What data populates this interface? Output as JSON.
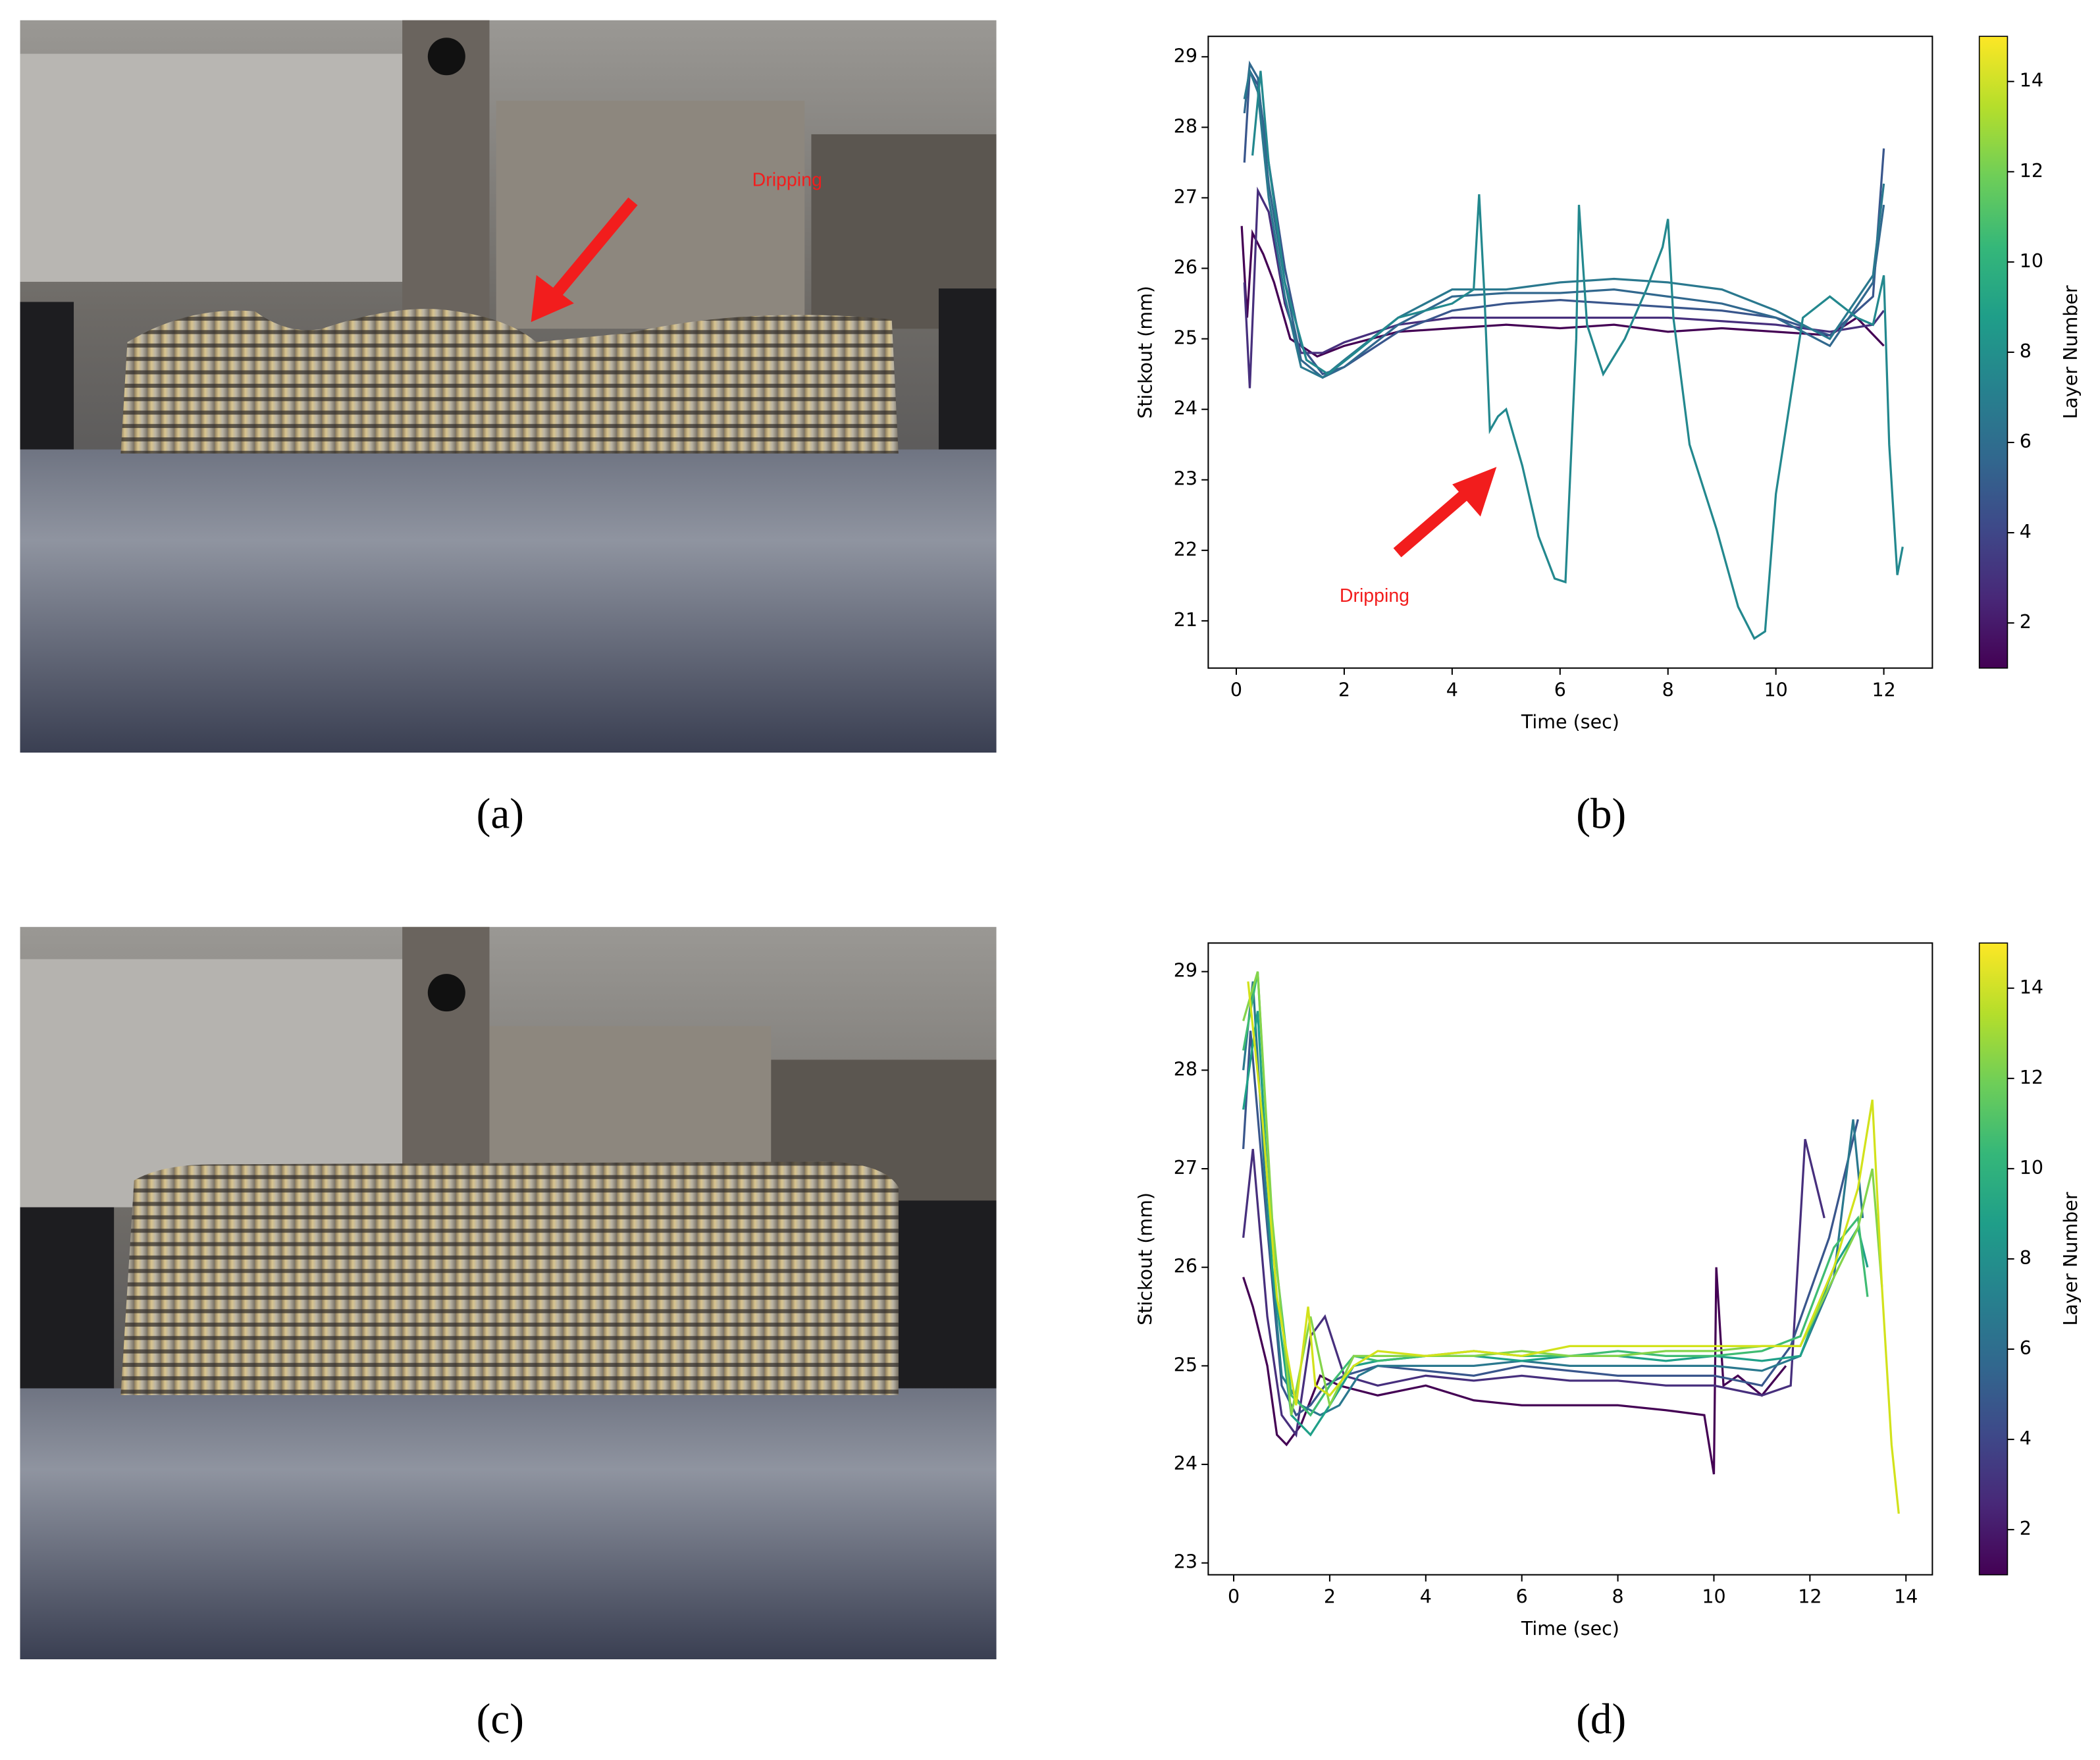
{
  "figure": {
    "photo_annotation": "Dripping",
    "captions": [
      "(a)",
      "(b)",
      "(c)",
      "(d)"
    ]
  },
  "chart_data": [
    {
      "type": "line",
      "xlabel": "Time (sec)",
      "ylabel": "Stickout (mm)",
      "xlim": [
        -0.52,
        12.9
      ],
      "ylim": [
        20.33,
        29.29
      ],
      "xticks": [
        0,
        2,
        4,
        6,
        8,
        10,
        12
      ],
      "yticks": [
        21,
        22,
        23,
        24,
        25,
        26,
        27,
        28,
        29
      ],
      "annotation": "Dripping",
      "colorbar": {
        "label": "Layer Number",
        "lim": [
          1,
          15
        ],
        "ticks": [
          2,
          4,
          6,
          8,
          10,
          12,
          14
        ],
        "colors": [
          "#440154",
          "#482878",
          "#3e4989",
          "#31688e",
          "#26828e",
          "#1f9e89",
          "#35b779",
          "#6ece58",
          "#b5de2b",
          "#fde725"
        ]
      },
      "series": [
        {
          "color": "#440154",
          "x": [
            0.1,
            0.2,
            0.3,
            0.5,
            0.7,
            1.0,
            1.5,
            2,
            3,
            4,
            5,
            6,
            7,
            8,
            9,
            10,
            11,
            11.5,
            12
          ],
          "values": [
            26.6,
            25.3,
            26.5,
            26.2,
            25.8,
            25.0,
            24.75,
            24.9,
            25.1,
            25.15,
            25.2,
            25.15,
            25.2,
            25.1,
            25.15,
            25.1,
            25.05,
            25.3,
            24.9
          ]
        },
        {
          "color": "#472f7d",
          "x": [
            0.15,
            0.25,
            0.4,
            0.6,
            0.9,
            1.2,
            1.6,
            2,
            3,
            4,
            5,
            6,
            7,
            8,
            9,
            10,
            11,
            11.8,
            12
          ],
          "values": [
            25.8,
            24.3,
            27.1,
            26.8,
            25.5,
            24.8,
            24.8,
            24.95,
            25.2,
            25.3,
            25.3,
            25.3,
            25.3,
            25.3,
            25.25,
            25.2,
            25.1,
            25.2,
            25.4
          ]
        },
        {
          "color": "#39568c",
          "x": [
            0.15,
            0.25,
            0.4,
            0.6,
            0.9,
            1.2,
            1.6,
            2,
            3,
            4,
            5,
            6,
            7,
            8,
            9,
            10,
            11,
            11.8,
            12
          ],
          "values": [
            27.5,
            28.8,
            28.6,
            27.5,
            26,
            24.9,
            24.5,
            24.6,
            25.1,
            25.4,
            25.5,
            25.55,
            25.5,
            25.45,
            25.4,
            25.3,
            25.05,
            25.6,
            27.7
          ]
        },
        {
          "color": "#31688e",
          "x": [
            0.15,
            0.25,
            0.4,
            0.6,
            0.9,
            1.2,
            1.6,
            2,
            3,
            4,
            5,
            6,
            7,
            8,
            9,
            10,
            11,
            11.8,
            12
          ],
          "values": [
            28.2,
            28.9,
            28.7,
            27.2,
            25.8,
            24.7,
            24.45,
            24.6,
            25.2,
            25.6,
            25.65,
            25.65,
            25.7,
            25.6,
            25.5,
            25.3,
            24.9,
            25.8,
            26.9
          ]
        },
        {
          "color": "#2a788e",
          "x": [
            0.15,
            0.25,
            0.4,
            0.6,
            0.9,
            1.2,
            1.6,
            2,
            3,
            4,
            5,
            6,
            7,
            8,
            9,
            10,
            11,
            11.8,
            12
          ],
          "values": [
            28.4,
            28.8,
            28.5,
            27,
            25.6,
            24.6,
            24.45,
            24.7,
            25.3,
            25.7,
            25.7,
            25.8,
            25.85,
            25.8,
            25.7,
            25.4,
            25,
            25.9,
            27.2
          ]
        },
        {
          "color": "#23888e",
          "x": [
            0.3,
            0.45,
            0.6,
            0.9,
            1.3,
            1.7,
            2.2,
            3,
            4,
            4.4,
            4.5,
            4.6,
            4.7,
            4.85,
            5.0,
            5.3,
            5.6,
            5.9,
            6.1,
            6.3,
            6.35,
            6.5,
            6.8,
            7.2,
            7.6,
            7.9,
            8.0,
            8.1,
            8.4,
            8.9,
            9.3,
            9.6,
            9.8,
            10.0,
            10.5,
            11,
            11.5,
            11.8,
            12.0,
            12.1,
            12.25,
            12.35
          ],
          "values": [
            27.6,
            28.8,
            27.5,
            25.8,
            24.7,
            24.5,
            24.8,
            25.3,
            25.5,
            25.7,
            27.05,
            25.6,
            23.7,
            23.9,
            24.0,
            23.2,
            22.2,
            21.6,
            21.55,
            25,
            26.9,
            25.2,
            24.5,
            25.0,
            25.7,
            26.3,
            26.7,
            25.3,
            23.5,
            22.3,
            21.2,
            20.75,
            20.85,
            22.8,
            25.3,
            25.6,
            25.3,
            25.2,
            25.9,
            23.5,
            21.65,
            22.05
          ]
        }
      ]
    },
    {
      "type": "line",
      "xlabel": "Time (sec)",
      "ylabel": "Stickout (mm)",
      "xlim": [
        -0.53,
        14.55
      ],
      "ylim": [
        22.88,
        29.29
      ],
      "xticks": [
        0,
        2,
        4,
        6,
        8,
        10,
        12,
        14
      ],
      "yticks": [
        23,
        24,
        25,
        26,
        27,
        28,
        29
      ],
      "colorbar": {
        "label": "Layer Number",
        "lim": [
          1,
          15
        ],
        "ticks": [
          2,
          4,
          6,
          8,
          10,
          12,
          14
        ],
        "colors": [
          "#440154",
          "#482878",
          "#3e4989",
          "#31688e",
          "#26828e",
          "#1f9e89",
          "#35b779",
          "#6ece58",
          "#b5de2b",
          "#fde725"
        ]
      },
      "series": [
        {
          "color": "#440154",
          "x": [
            0.2,
            0.4,
            0.7,
            0.9,
            1.1,
            1.4,
            1.8,
            2.2,
            3,
            4,
            5,
            6,
            7,
            8,
            9,
            9.8,
            10,
            10.05,
            10.2,
            10.5,
            11,
            11.5
          ],
          "values": [
            25.9,
            25.6,
            25.0,
            24.3,
            24.2,
            24.4,
            24.9,
            24.8,
            24.7,
            24.8,
            24.65,
            24.6,
            24.6,
            24.6,
            24.55,
            24.5,
            23.9,
            26.0,
            24.8,
            24.9,
            24.7,
            25.0
          ]
        },
        {
          "color": "#472f7d",
          "x": [
            0.2,
            0.4,
            0.7,
            1,
            1.3,
            1.6,
            1.9,
            2.3,
            3,
            4,
            5,
            6,
            7,
            8,
            9,
            10,
            11,
            11.6,
            11.9,
            12.3
          ],
          "values": [
            26.3,
            27.2,
            25.5,
            24.5,
            24.3,
            25.3,
            25.5,
            24.9,
            24.8,
            24.9,
            24.85,
            24.9,
            24.85,
            24.85,
            24.8,
            24.8,
            24.7,
            24.8,
            27.3,
            26.5
          ]
        },
        {
          "color": "#39568c",
          "x": [
            0.2,
            0.35,
            0.7,
            1,
            1.3,
            1.6,
            1.9,
            2.3,
            3,
            4,
            5,
            6,
            7,
            8,
            9,
            10,
            11,
            11.6,
            12.4,
            13
          ],
          "values": [
            27.2,
            28.4,
            26.4,
            24.8,
            24.5,
            24.6,
            24.8,
            24.9,
            25.0,
            24.95,
            24.9,
            25.0,
            24.95,
            24.9,
            24.9,
            24.9,
            24.8,
            25.2,
            26.3,
            27.5
          ]
        },
        {
          "color": "#2a788e",
          "x": [
            0.2,
            0.4,
            0.7,
            1,
            1.4,
            1.8,
            2.2,
            2.6,
            3,
            4,
            5,
            6,
            7,
            8,
            9,
            10,
            11,
            11.8,
            12.5,
            12.9,
            13.1
          ],
          "values": [
            28.0,
            28.9,
            26.5,
            24.9,
            24.6,
            24.5,
            24.6,
            24.9,
            25.0,
            25.0,
            25.0,
            25.05,
            25.0,
            25.0,
            25.0,
            25.0,
            24.95,
            25.1,
            25.9,
            27.5,
            26.5
          ]
        },
        {
          "color": "#1fa088",
          "x": [
            0.2,
            0.5,
            0.8,
            1.2,
            1.6,
            2,
            2.5,
            3,
            4,
            5,
            6,
            7,
            8,
            9,
            10,
            11,
            11.8,
            12.5,
            13,
            13.2
          ],
          "values": [
            27.6,
            28.6,
            26,
            24.5,
            24.3,
            24.6,
            25.0,
            25.05,
            25.1,
            25.1,
            25.05,
            25.1,
            25.1,
            25.05,
            25.1,
            25.05,
            25.1,
            26.0,
            26.4,
            26.0
          ]
        },
        {
          "color": "#3fbc73",
          "x": [
            0.2,
            0.5,
            0.8,
            1.2,
            1.6,
            2,
            2.5,
            3,
            4,
            5,
            6,
            7,
            8,
            9,
            10,
            11,
            11.8,
            12.5,
            13,
            13.2
          ],
          "values": [
            28.2,
            29.0,
            26.4,
            24.7,
            24.5,
            24.8,
            25.1,
            25.05,
            25.1,
            25.15,
            25.1,
            25.1,
            25.15,
            25.1,
            25.1,
            25.15,
            25.3,
            26.2,
            26.5,
            25.7
          ]
        },
        {
          "color": "#84d44b",
          "x": [
            0.2,
            0.5,
            0.8,
            1.2,
            1.6,
            2,
            2.5,
            3,
            4,
            5,
            6,
            7,
            8,
            9,
            10,
            11,
            11.8,
            12.5,
            13,
            13.3,
            13.5
          ],
          "values": [
            28.5,
            29.0,
            26.5,
            24.5,
            25.5,
            24.6,
            25.1,
            25.1,
            25.1,
            25.1,
            25.15,
            25.1,
            25.1,
            25.15,
            25.15,
            25.2,
            25.2,
            25.9,
            26.4,
            27.0,
            25.8
          ]
        },
        {
          "color": "#d2e21b",
          "x": [
            0.3,
            0.6,
            0.9,
            1.3,
            1.55,
            1.7,
            2,
            2.5,
            3,
            4,
            5,
            6,
            7,
            8,
            9,
            10,
            11,
            11.8,
            12.5,
            13.0,
            13.3,
            13.5,
            13.7,
            13.85
          ],
          "values": [
            28.9,
            27.5,
            25.7,
            24.6,
            25.6,
            24.8,
            24.7,
            25.0,
            25.15,
            25.1,
            25.15,
            25.1,
            25.2,
            25.2,
            25.2,
            25.2,
            25.2,
            25.2,
            26.0,
            26.8,
            27.7,
            25.8,
            24.2,
            23.5
          ]
        }
      ]
    }
  ]
}
